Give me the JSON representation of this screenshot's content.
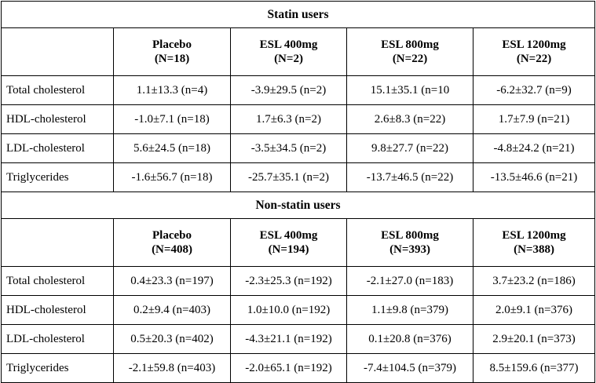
{
  "sections": [
    {
      "title": "Statin users",
      "headers": [
        {
          "name": "Placebo",
          "n": "(N=18)"
        },
        {
          "name": "ESL 400mg",
          "n": "(N=2)"
        },
        {
          "name": "ESL 800mg",
          "n": "(N=22)"
        },
        {
          "name": "ESL 1200mg",
          "n": "(N=22)"
        }
      ],
      "rows": [
        {
          "label": "Total cholesterol",
          "cells": [
            "1.1±13.3 (n=4)",
            "-3.9±29.5 (n=2)",
            "15.1±35.1 (n=10",
            "-6.2±32.7 (n=9)"
          ]
        },
        {
          "label": "HDL-cholesterol",
          "cells": [
            "-1.0±7.1 (n=18)",
            "1.7±6.3 (n=2)",
            "2.6±8.3 (n=22)",
            "1.7±7.9 (n=21)"
          ]
        },
        {
          "label": "LDL-cholesterol",
          "cells": [
            "5.6±24.5 (n=18)",
            "-3.5±34.5 (n=2)",
            "9.8±27.7 (n=22)",
            "-4.8±24.2 (n=21)"
          ]
        },
        {
          "label": "Triglycerides",
          "cells": [
            "-1.6±56.7 (n=18)",
            "-25.7±35.1 (n=2)",
            "-13.7±46.5 (n=22)",
            "-13.5±46.6 (n=21)"
          ]
        }
      ]
    },
    {
      "title": "Non-statin users",
      "headers": [
        {
          "name": "Placebo",
          "n": "(N=408)"
        },
        {
          "name": "ESL 400mg",
          "n": "(N=194)"
        },
        {
          "name": "ESL 800mg",
          "n": "(N=393)"
        },
        {
          "name": "ESL 1200mg",
          "n": "(N=388)"
        }
      ],
      "rows": [
        {
          "label": "Total cholesterol",
          "cells": [
            "0.4±23.3 (n=197)",
            "-2.3±25.3 (n=192)",
            "-2.1±27.0 (n=183)",
            "3.7±23.2 (n=186)"
          ]
        },
        {
          "label": "HDL-cholesterol",
          "cells": [
            "0.2±9.4 (n=403)",
            "1.0±10.0 (n=192)",
            "1.1±9.8 (n=379)",
            "2.0±9.1 (n=376)"
          ]
        },
        {
          "label": "LDL-cholesterol",
          "cells": [
            "0.5±20.3 (n=402)",
            "-4.3±21.1 (n=192)",
            "0.1±20.8 (n=376)",
            "2.9±20.1 (n=373)"
          ]
        },
        {
          "label": "Triglycerides",
          "cells": [
            "-2.1±59.8 (n=403)",
            "-2.0±65.1 (n=192)",
            "-7.4±104.5 (n=379)",
            "8.5±159.6 (n=377)"
          ]
        }
      ]
    }
  ]
}
